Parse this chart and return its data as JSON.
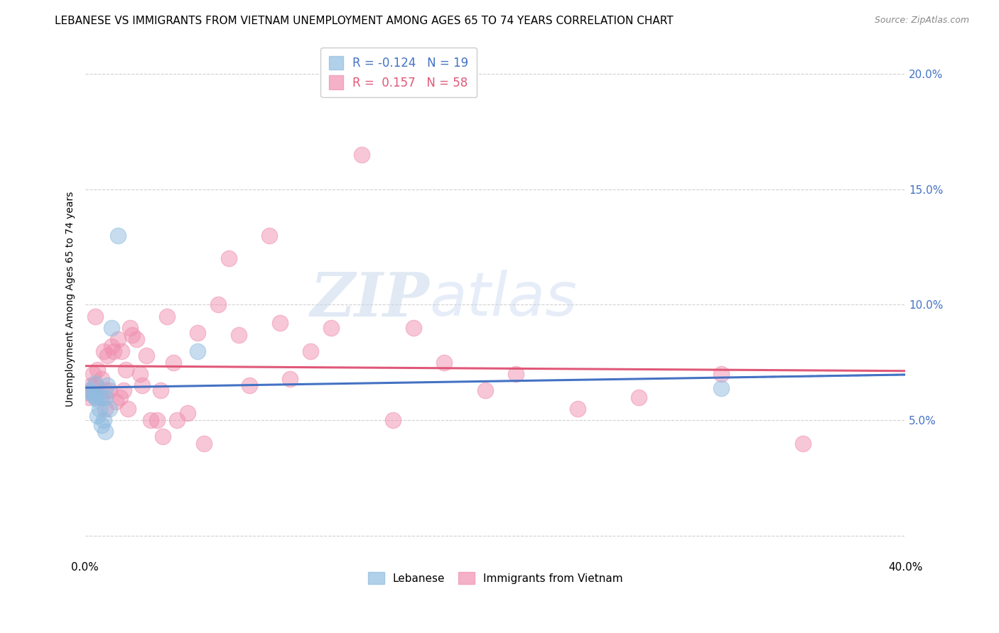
{
  "title": "LEBANESE VS IMMIGRANTS FROM VIETNAM UNEMPLOYMENT AMONG AGES 65 TO 74 YEARS CORRELATION CHART",
  "source": "Source: ZipAtlas.com",
  "ylabel": "Unemployment Among Ages 65 to 74 years",
  "watermark_zip": "ZIP",
  "watermark_atlas": "atlas",
  "legend_entries": [
    {
      "label": "Lebanese",
      "R": -0.124,
      "N": 19,
      "color": "#a8c8e8"
    },
    {
      "label": "Immigrants from Vietnam",
      "R": 0.157,
      "N": 58,
      "color": "#f4a0b8"
    }
  ],
  "yticks": [
    0.0,
    0.05,
    0.1,
    0.15,
    0.2
  ],
  "ytick_labels": [
    "",
    "5.0%",
    "10.0%",
    "15.0%",
    "20.0%"
  ],
  "xmin": 0.0,
  "xmax": 0.4,
  "ymin": -0.01,
  "ymax": 0.215,
  "lebanese_x": [
    0.002,
    0.003,
    0.004,
    0.005,
    0.005,
    0.006,
    0.006,
    0.007,
    0.008,
    0.008,
    0.009,
    0.01,
    0.01,
    0.011,
    0.012,
    0.013,
    0.016,
    0.055,
    0.31
  ],
  "lebanese_y": [
    0.063,
    0.062,
    0.061,
    0.066,
    0.06,
    0.059,
    0.052,
    0.055,
    0.06,
    0.048,
    0.05,
    0.045,
    0.06,
    0.065,
    0.055,
    0.09,
    0.13,
    0.08,
    0.064
  ],
  "vietnam_x": [
    0.001,
    0.002,
    0.003,
    0.004,
    0.005,
    0.005,
    0.006,
    0.007,
    0.008,
    0.009,
    0.01,
    0.01,
    0.011,
    0.012,
    0.013,
    0.014,
    0.015,
    0.016,
    0.017,
    0.018,
    0.019,
    0.02,
    0.021,
    0.022,
    0.023,
    0.025,
    0.027,
    0.028,
    0.03,
    0.032,
    0.035,
    0.037,
    0.038,
    0.04,
    0.043,
    0.045,
    0.05,
    0.055,
    0.058,
    0.065,
    0.07,
    0.075,
    0.08,
    0.09,
    0.095,
    0.1,
    0.11,
    0.12,
    0.135,
    0.15,
    0.16,
    0.175,
    0.195,
    0.21,
    0.24,
    0.27,
    0.31,
    0.35
  ],
  "vietnam_y": [
    0.062,
    0.06,
    0.065,
    0.07,
    0.065,
    0.095,
    0.072,
    0.06,
    0.068,
    0.08,
    0.055,
    0.063,
    0.078,
    0.063,
    0.082,
    0.08,
    0.058,
    0.085,
    0.06,
    0.08,
    0.063,
    0.072,
    0.055,
    0.09,
    0.087,
    0.085,
    0.07,
    0.065,
    0.078,
    0.05,
    0.05,
    0.063,
    0.043,
    0.095,
    0.075,
    0.05,
    0.053,
    0.088,
    0.04,
    0.1,
    0.12,
    0.087,
    0.065,
    0.13,
    0.092,
    0.068,
    0.08,
    0.09,
    0.165,
    0.05,
    0.09,
    0.075,
    0.063,
    0.07,
    0.055,
    0.06,
    0.07,
    0.04
  ],
  "lebanese_color": "#90bce0",
  "vietnam_color": "#f090b0",
  "lebanese_line_color": "#4472c4",
  "vietnam_line_color": "#e05878",
  "background_color": "#ffffff",
  "grid_color": "#cccccc",
  "title_fontsize": 11,
  "axis_fontsize": 10,
  "tick_fontsize": 11
}
